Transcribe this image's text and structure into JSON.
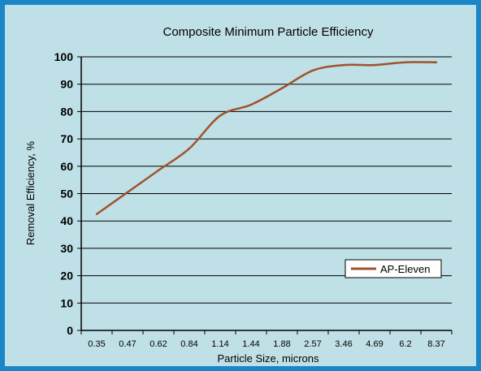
{
  "chart_data": {
    "type": "line",
    "title": "Composite Minimum Particle Efficiency",
    "xlabel": "Particle Size, microns",
    "ylabel": "Removal Efficiency, %",
    "categories": [
      "0.35",
      "0.47",
      "0.62",
      "0.84",
      "1.14",
      "1.44",
      "1.88",
      "2.57",
      "3.46",
      "4.69",
      "6.2",
      "8.37"
    ],
    "series": [
      {
        "name": "AP-Eleven",
        "values": [
          42.5,
          50.5,
          58.5,
          66.5,
          78.5,
          82.5,
          88.5,
          95.0,
          97.0,
          97.0,
          98.0,
          98.0
        ]
      }
    ],
    "yticks": [
      0,
      10,
      20,
      30,
      40,
      50,
      60,
      70,
      80,
      90,
      100
    ],
    "ylim": [
      0,
      100
    ],
    "grid": true,
    "legend_position": "right",
    "colors": {
      "background": "#bfe0e6",
      "border": "#1a86c8",
      "line": "#a0522d",
      "grid": "#000000"
    }
  }
}
